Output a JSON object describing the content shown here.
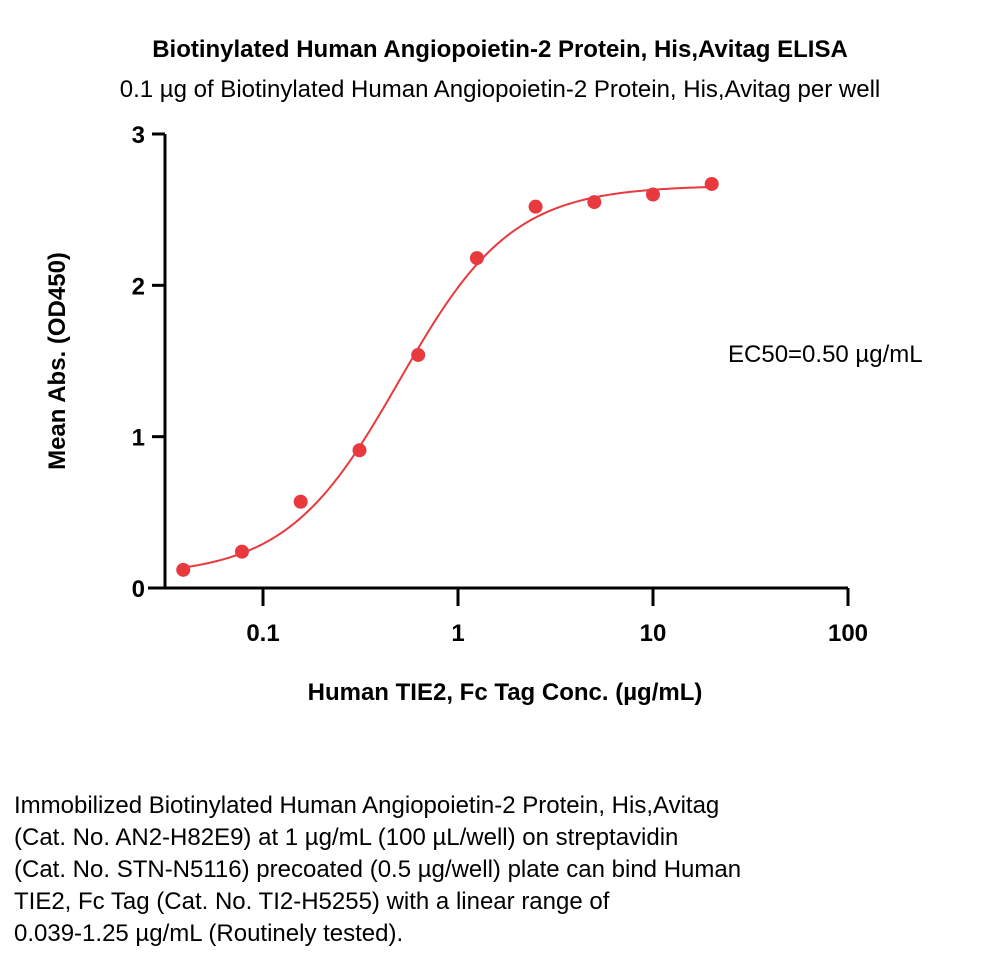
{
  "title": "Biotinylated Human Angiopoietin-2 Protein, His,Avitag ELISA",
  "subtitle": "0.1 µg of Biotinylated Human Angiopoietin-2 Protein, His,Avitag per well",
  "annotation": "EC50=0.50 µg/mL",
  "caption_lines": [
    "Immobilized Biotinylated Human Angiopoietin-2 Protein, His,Avitag",
    "(Cat. No. AN2-H82E9) at 1 µg/mL (100 µL/well) on streptavidin",
    "(Cat. No. STN-N5116) precoated (0.5 µg/well) plate can bind Human",
    "TIE2, Fc Tag (Cat. No. TI2-H5255) with a linear range of",
    "0.039-1.25 µg/mL (Routinely tested)."
  ],
  "colors": {
    "series": "#e8393f",
    "axis": "#000000"
  },
  "chart_data": {
    "type": "scatter",
    "title": "Biotinylated Human Angiopoietin-2 Protein, His,Avitag ELISA",
    "subtitle": "0.1 µg of Biotinylated Human Angiopoietin-2 Protein, His,Avitag per well",
    "xlabel": "Human TIE2, Fc Tag Conc. (µg/mL)",
    "ylabel": "Mean Abs. (OD450)",
    "xscale": "log",
    "xlim": [
      0.03,
      100
    ],
    "ylim": [
      0,
      3
    ],
    "xticks": [
      0.1,
      1,
      10,
      100
    ],
    "xtick_labels": [
      "0.1",
      "1",
      "10",
      "100"
    ],
    "yticks": [
      0,
      1,
      2,
      3
    ],
    "ytick_labels": [
      "0",
      "1",
      "2",
      "3"
    ],
    "grid": false,
    "legend": "none",
    "series": [
      {
        "x": [
          0.039,
          0.078,
          0.156,
          0.3125,
          0.625,
          1.25,
          2.5,
          5,
          10,
          20
        ],
        "y": [
          0.12,
          0.24,
          0.57,
          0.91,
          1.54,
          2.18,
          2.52,
          2.55,
          2.6,
          2.67
        ],
        "fit": "four-parameter logistic",
        "fit_params": {
          "bottom": 0.08,
          "top": 2.66,
          "ec50": 0.5,
          "hill": 1.5
        }
      }
    ],
    "annotations": [
      {
        "text": "EC50=0.50 µg/mL"
      }
    ]
  }
}
